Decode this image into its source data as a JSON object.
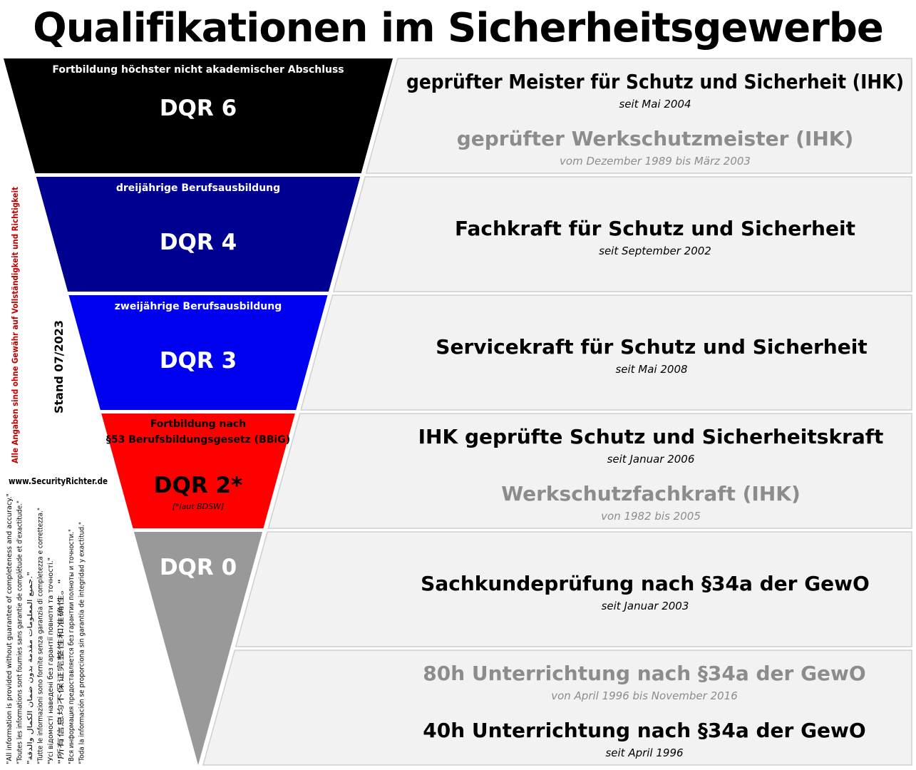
{
  "title": "Qualifikationen im Sicherheitsgewerbe",
  "stand": "Stand 07/2023",
  "disclaimer": "Alle Angaben sind ohne Gewähr auf Vollständigkeit und Richtigkeit",
  "website": "www.SecurityRichter.de",
  "disclaimers_multi": [
    "\"All information is provided without guarantee of completeness and accuracy.\"",
    "\"Toutes les informations sont fournies sans garantie de complétude et d'exactitude.\"",
    "\"جميع المعلومات مقدمة بدون ضمان الكمال والدقة.\"",
    "\"Tutte le informazioni sono fornite senza garanzia di completezza e correttezza.\"",
    "\"Усі відомості наведені без гарантії повноти та точності.\"",
    "\"所有信息均不保证完整性和准确性。\"",
    "\"Вся информация предоставляется без гарантии полноты и точности.\"",
    "\"Toda la información se proporciona sin garantía de integridad y exactitud.\""
  ],
  "levels": [
    {
      "sub": [
        "Fortbildung höchster nicht akademischer Abschluss"
      ],
      "dqr": "DQR 6",
      "note": "",
      "color": "#000000",
      "text_color": "#ffffff"
    },
    {
      "sub": [
        "dreijährige Berufsausbildung"
      ],
      "dqr": "DQR 4",
      "note": "",
      "color": "#000090",
      "text_color": "#ffffff"
    },
    {
      "sub": [
        "zweijährige Berufsausbildung"
      ],
      "dqr": "DQR 3",
      "note": "",
      "color": "#0000f0",
      "text_color": "#ffffff"
    },
    {
      "sub": [
        "Fortbildung nach",
        "§53 Berufsbildungsgesetz (BBiG)"
      ],
      "dqr": "DQR 2*",
      "note": "[*laut BDSW]",
      "color": "#ff0000",
      "text_color": "#000000"
    },
    {
      "sub": [],
      "dqr": "DQR 0",
      "note": "",
      "color": "#999999",
      "text_color": "#ffffff"
    }
  ],
  "rows": [
    {
      "items": [
        {
          "name": "geprüfter Meister für Schutz und Sicherheit (IHK)",
          "since": "seit Mai 2004",
          "current": true
        },
        {
          "name": "geprüfter Werkschutzmeister (IHK)",
          "since": "vom Dezember 1989 bis März 2003",
          "current": false
        }
      ]
    },
    {
      "items": [
        {
          "name": "Fachkraft für Schutz und Sicherheit",
          "since": "seit September 2002",
          "current": true
        }
      ]
    },
    {
      "items": [
        {
          "name": "Servicekraft für Schutz und Sicherheit",
          "since": "seit Mai 2008",
          "current": true
        }
      ]
    },
    {
      "items": [
        {
          "name": "IHK geprüfte Schutz und Sicherheitskraft",
          "since": "seit Januar 2006",
          "current": true
        },
        {
          "name": "Werkschutzfachkraft (IHK)",
          "since": "von 1982 bis 2005",
          "current": false
        }
      ]
    },
    {
      "items": [
        {
          "name": "Sachkundeprüfung nach §34a der GewO",
          "since": "seit Januar 2003",
          "current": true
        }
      ]
    },
    {
      "items": [
        {
          "name": "80h Unterrichtung nach §34a der GewO",
          "since": "von April 1996 bis November 2016",
          "current": false
        },
        {
          "name": "40h Unterrichtung nach §34a der GewO",
          "since": "seit April 1996",
          "current": true
        }
      ]
    }
  ]
}
